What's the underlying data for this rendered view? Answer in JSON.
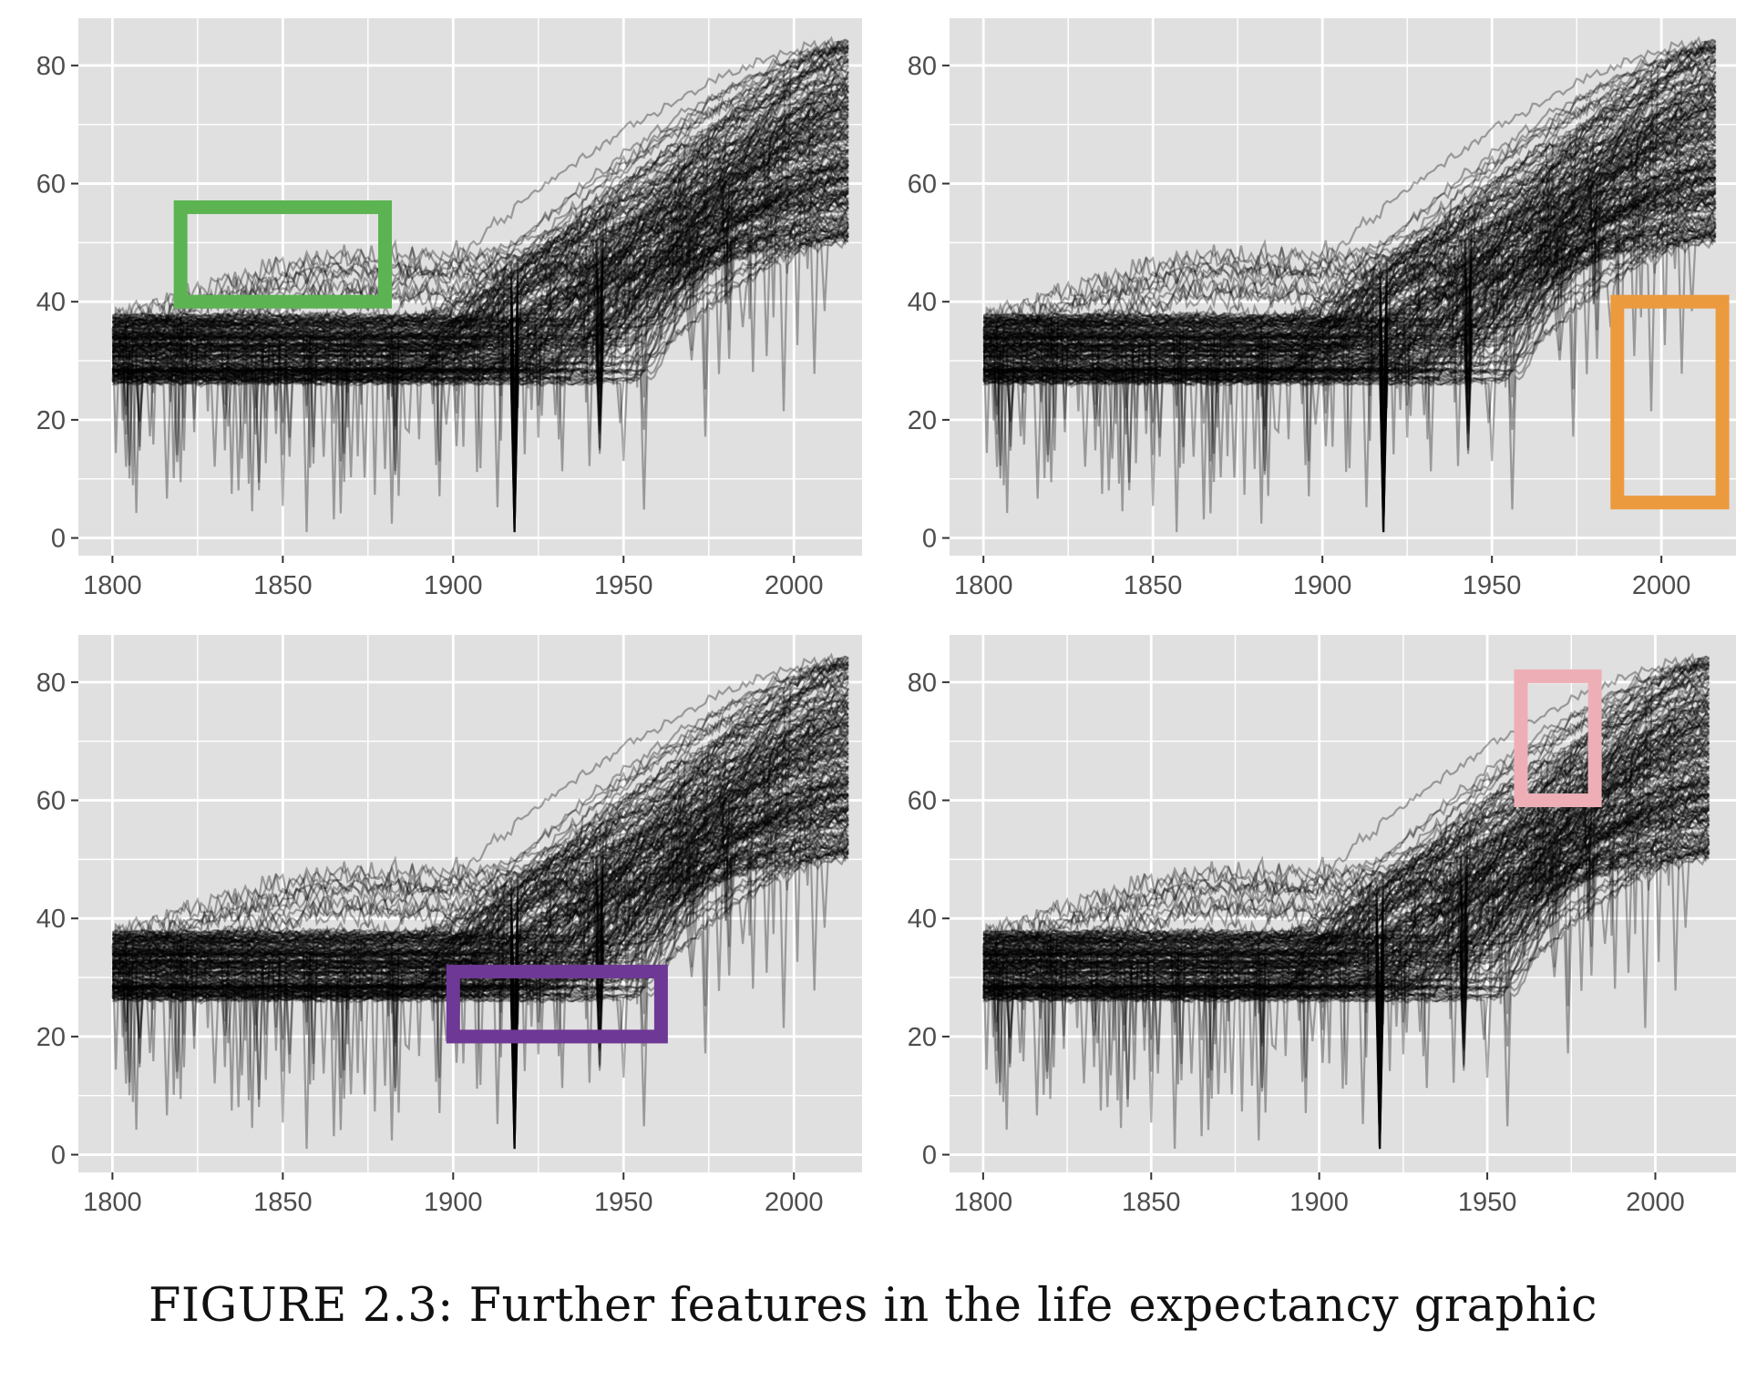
{
  "caption": "FIGURE 2.3: Further features in the life expectancy graphic",
  "colors": {
    "panel_bg": "#e0e0e0",
    "grid": "#ffffff",
    "line": "#000000",
    "highlight_green": "#5cb352",
    "highlight_orange": "#ec9a3e",
    "highlight_purple": "#6e3896",
    "highlight_pink": "#eeaeb6"
  },
  "chart_data": [
    {
      "type": "line",
      "panel": "top-left",
      "title": "",
      "xlabel": "",
      "ylabel": "",
      "xlim": [
        1790,
        2020
      ],
      "ylim": [
        -3,
        88
      ],
      "xticks": [
        1800,
        1850,
        1900,
        1950,
        2000
      ],
      "yticks": [
        0,
        20,
        40,
        60,
        80
      ],
      "grid": true,
      "legend": "none",
      "series_description": "many overlapping semi-transparent black lines, one per country, life expectancy by year",
      "highlight": {
        "color": "green",
        "x": [
          1820,
          1880
        ],
        "y": [
          40,
          56
        ]
      }
    },
    {
      "type": "line",
      "panel": "top-right",
      "title": "",
      "xlabel": "",
      "ylabel": "",
      "xlim": [
        1790,
        2022
      ],
      "ylim": [
        -3,
        88
      ],
      "xticks": [
        1800,
        1850,
        1900,
        1950,
        2000
      ],
      "yticks": [
        0,
        20,
        40,
        60,
        80
      ],
      "grid": true,
      "legend": "none",
      "highlight": {
        "color": "orange",
        "x": [
          1987,
          2018
        ],
        "y": [
          6,
          40
        ]
      }
    },
    {
      "type": "line",
      "panel": "bottom-left",
      "title": "",
      "xlabel": "",
      "ylabel": "",
      "xlim": [
        1790,
        2020
      ],
      "ylim": [
        -3,
        88
      ],
      "xticks": [
        1800,
        1850,
        1900,
        1950,
        2000
      ],
      "yticks": [
        0,
        20,
        40,
        60,
        80
      ],
      "grid": true,
      "legend": "none",
      "highlight": {
        "color": "purple",
        "x": [
          1900,
          1961
        ],
        "y": [
          20,
          31
        ]
      }
    },
    {
      "type": "line",
      "panel": "bottom-right",
      "title": "",
      "xlabel": "",
      "ylabel": "",
      "xlim": [
        1790,
        2024
      ],
      "ylim": [
        -3,
        88
      ],
      "xticks": [
        1800,
        1850,
        1900,
        1950,
        2000
      ],
      "yticks": [
        0,
        20,
        40,
        60,
        80
      ],
      "grid": true,
      "legend": "none",
      "highlight": {
        "color": "pink",
        "x": [
          1960,
          1982
        ],
        "y": [
          60,
          81
        ]
      }
    }
  ]
}
